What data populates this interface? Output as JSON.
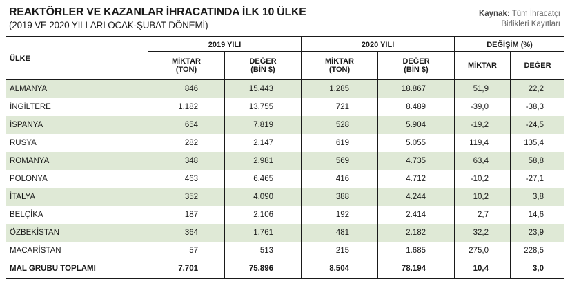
{
  "title": "REAKTÖRLER VE KAZANLAR İHRACATINDA İLK 10 ÜLKE",
  "subtitle": "(2019 VE 2020 YILLARI OCAK-ŞUBAT DÖNEMİ)",
  "source": {
    "label": "Kaynak:",
    "text1": "Tüm İhracatçı",
    "text2": "Birlikleri Kayıtları"
  },
  "headers": {
    "country": "ÜLKE",
    "y2019": "2019 YILI",
    "y2020": "2020 YILI",
    "change": "DEĞİŞİM (%)",
    "qty1": "MİKTAR",
    "qty2": "(TON)",
    "val1": "DEĞER",
    "val2": "(BİN $)",
    "chg_qty": "MİKTAR",
    "chg_val": "DEĞER"
  },
  "rows": [
    [
      "ALMANYA",
      "846",
      "15.443",
      "1.285",
      "18.867",
      "51,9",
      "22,2"
    ],
    [
      "İNGİLTERE",
      "1.182",
      "13.755",
      "721",
      "8.489",
      "-39,0",
      "-38,3"
    ],
    [
      "İSPANYA",
      "654",
      "7.819",
      "528",
      "5.904",
      "-19,2",
      "-24,5"
    ],
    [
      "RUSYA",
      "282",
      "2.147",
      "619",
      "5.055",
      "119,4",
      "135,4"
    ],
    [
      "ROMANYA",
      "348",
      "2.981",
      "569",
      "4.735",
      "63,4",
      "58,8"
    ],
    [
      "POLONYA",
      "463",
      "6.465",
      "416",
      "4.712",
      "-10,2",
      "-27,1"
    ],
    [
      "İTALYA",
      "352",
      "4.090",
      "388",
      "4.244",
      "10,2",
      "3,8"
    ],
    [
      "BELÇİKA",
      "187",
      "2.106",
      "192",
      "2.414",
      "2,7",
      "14,6"
    ],
    [
      "ÖZBEKİSTAN",
      "364",
      "1.761",
      "481",
      "2.182",
      "32,2",
      "23,9"
    ],
    [
      "MACARİSTAN",
      "57",
      "513",
      "215",
      "1.685",
      "275,0",
      "228,5"
    ]
  ],
  "total": [
    "MAL GRUBU TOPLAMI",
    "7.701",
    "75.896",
    "8.504",
    "78.194",
    "10,4",
    "3,0"
  ]
}
